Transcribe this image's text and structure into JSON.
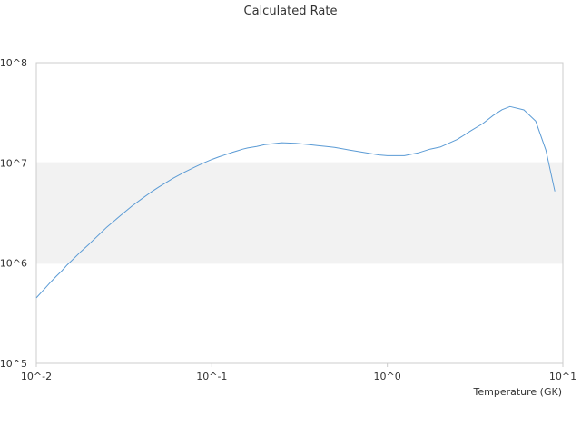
{
  "chart_data": {
    "type": "line",
    "title": "Calculated Rate",
    "xlabel": "Temperature (GK)",
    "ylabel": "",
    "x_scale": "log",
    "y_scale": "log",
    "xlim": [
      0.01,
      10
    ],
    "ylim": [
      100000,
      100000000
    ],
    "x_ticks": [
      {
        "value": 0.01,
        "label": "10^-2"
      },
      {
        "value": 0.1,
        "label": "10^-1"
      },
      {
        "value": 1,
        "label": "10^0"
      },
      {
        "value": 10,
        "label": "10^1"
      }
    ],
    "y_ticks": [
      {
        "value": 100000,
        "label": "10^5"
      },
      {
        "value": 1000000,
        "label": "10^6"
      },
      {
        "value": 10000000,
        "label": "10^7"
      },
      {
        "value": 100000000,
        "label": "10^8"
      }
    ],
    "grid": true,
    "alternating_bands": true,
    "legend": "none",
    "colors": {
      "line": "#5b9bd5",
      "band": "#f2f2f2",
      "gridline": "#d9d9d9",
      "axis": "#cccccc",
      "text": "#333333"
    },
    "series": [
      {
        "x": [
          0.01,
          0.011,
          0.012,
          0.013,
          0.014,
          0.015,
          0.016,
          0.018,
          0.02,
          0.025,
          0.03,
          0.035,
          0.04,
          0.045,
          0.05,
          0.06,
          0.07,
          0.08,
          0.09,
          0.1,
          0.11,
          0.12,
          0.13,
          0.14,
          0.15,
          0.16,
          0.18,
          0.2,
          0.25,
          0.3,
          0.35,
          0.4,
          0.45,
          0.5,
          0.6,
          0.7,
          0.8,
          0.9,
          1.0,
          1.25,
          1.5,
          1.75,
          2.0,
          2.5,
          3.0,
          3.5,
          4.0,
          4.5,
          5.0,
          6.0,
          7.0,
          8.0,
          9.0
        ],
        "y": [
          450000,
          540000,
          640000,
          740000,
          840000,
          960000,
          1070000,
          1310000,
          1550000,
          2250000,
          2950000,
          3700000,
          4400000,
          5100000,
          5750000,
          7000000,
          8100000,
          9100000,
          10000000,
          10800000,
          11500000,
          12100000,
          12700000,
          13200000,
          13700000,
          14100000,
          14600000,
          15200000,
          15900000,
          15700000,
          15300000,
          14900000,
          14600000,
          14300000,
          13500000,
          12900000,
          12400000,
          12000000,
          11800000,
          11800000,
          12600000,
          13700000,
          14400000,
          17100000,
          21000000,
          24700000,
          29700000,
          33900000,
          36500000,
          33800000,
          26100000,
          13400000,
          5200000
        ]
      }
    ]
  }
}
